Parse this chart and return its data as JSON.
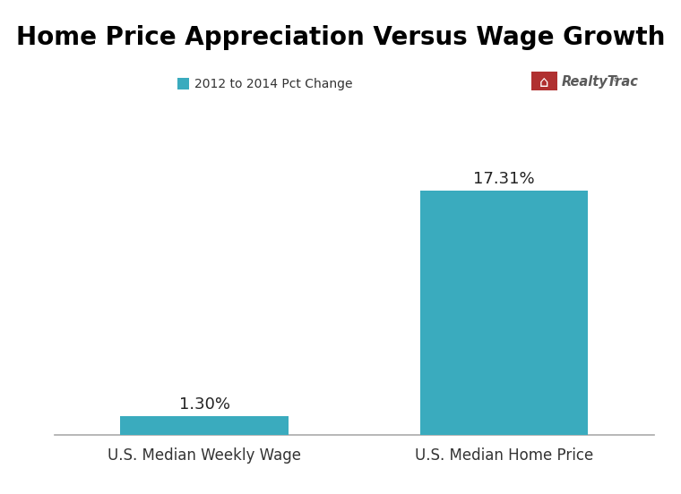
{
  "title": "Home Price Appreciation Versus Wage Growth",
  "legend_label": "2012 to 2014 Pct Change",
  "categories": [
    "U.S. Median Weekly Wage",
    "U.S. Median Home Price"
  ],
  "values": [
    1.3,
    17.31
  ],
  "labels": [
    "1.30%",
    "17.31%"
  ],
  "bar_color": "#3aabbe",
  "bar_width": 0.28,
  "ylim": [
    0,
    21
  ],
  "title_fontsize": 20,
  "label_fontsize": 13,
  "tick_fontsize": 12,
  "legend_fontsize": 10,
  "background_color": "#ffffff",
  "realtytrac_color": "#5a5a5a",
  "logo_box_color": "#b03030"
}
